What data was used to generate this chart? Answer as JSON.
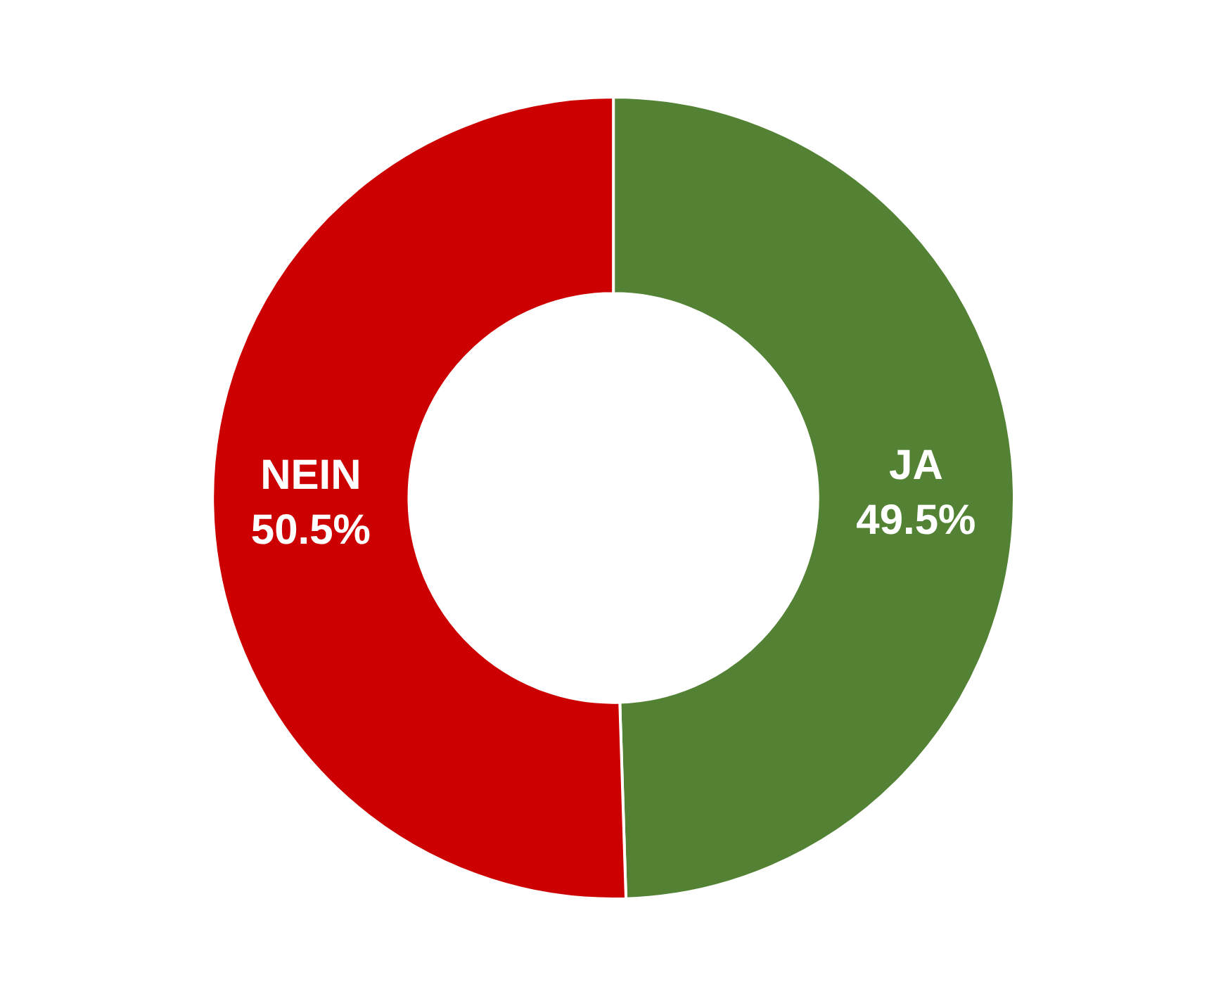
{
  "chart_data": {
    "type": "donut",
    "categories": [
      "JA",
      "NEIN"
    ],
    "values": [
      49.5,
      50.5
    ],
    "colors": [
      "#548235",
      "#cc0000"
    ],
    "value_labels": [
      "49.5%",
      "50.5%"
    ],
    "legend": false
  }
}
